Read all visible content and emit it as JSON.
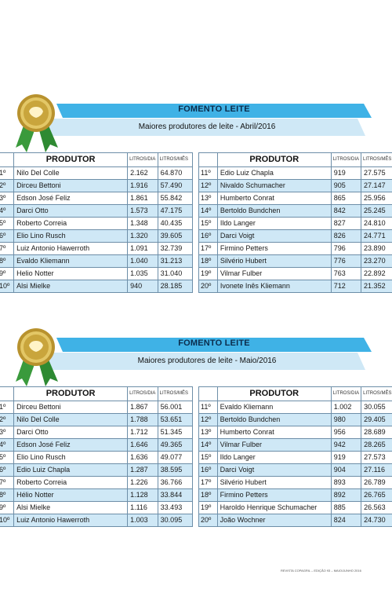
{
  "headers": {
    "produtor": "PRODUTOR",
    "litros_dia": "LITROS/DIA",
    "litros_mes": "LITROS/MÊS"
  },
  "sections": [
    {
      "title": "FOMENTO LEITE",
      "subtitle": "Maiores produtores de leite - Abril/2016",
      "left": [
        {
          "rank": "1º",
          "name": "Nilo Del Colle",
          "dia": "2.162",
          "mes": "64.870"
        },
        {
          "rank": "2º",
          "name": "Dirceu Bettoni",
          "dia": "1.916",
          "mes": "57.490"
        },
        {
          "rank": "3º",
          "name": "Edson José Feliz",
          "dia": "1.861",
          "mes": "55.842"
        },
        {
          "rank": "4º",
          "name": "Darci Otto",
          "dia": "1.573",
          "mes": "47.175"
        },
        {
          "rank": "5º",
          "name": "Roberto Correia",
          "dia": "1.348",
          "mes": "40.435"
        },
        {
          "rank": "6º",
          "name": "Elio Lino Rusch",
          "dia": "1.320",
          "mes": "39.605"
        },
        {
          "rank": "7º",
          "name": "Luiz Antonio Hawerroth",
          "dia": "1.091",
          "mes": "32.739"
        },
        {
          "rank": "8º",
          "name": "Evaldo Kliemann",
          "dia": "1.040",
          "mes": "31.213"
        },
        {
          "rank": "9º",
          "name": "Helio Notter",
          "dia": "1.035",
          "mes": "31.040"
        },
        {
          "rank": "10º",
          "name": "Alsi Mielke",
          "dia": "940",
          "mes": "28.185"
        }
      ],
      "right": [
        {
          "rank": "11º",
          "name": "Edio Luiz Chapla",
          "dia": "919",
          "mes": "27.575"
        },
        {
          "rank": "12º",
          "name": "Nivaldo Schumacher",
          "dia": "905",
          "mes": "27.147"
        },
        {
          "rank": "13º",
          "name": "Humberto Conrat",
          "dia": "865",
          "mes": "25.956"
        },
        {
          "rank": "14º",
          "name": "Bertoldo Bundchen",
          "dia": "842",
          "mes": "25.245"
        },
        {
          "rank": "15º",
          "name": "Ildo Langer",
          "dia": "827",
          "mes": "24.810"
        },
        {
          "rank": "16º",
          "name": "Darci Voigt",
          "dia": "826",
          "mes": "24.771"
        },
        {
          "rank": "17º",
          "name": "Firmino Petters",
          "dia": "796",
          "mes": "23.890"
        },
        {
          "rank": "18º",
          "name": "Silvério Hubert",
          "dia": "776",
          "mes": "23.270"
        },
        {
          "rank": "19º",
          "name": "Vilmar Fulber",
          "dia": "763",
          "mes": "22.892"
        },
        {
          "rank": "20º",
          "name": "Ivonete Inês Kliemann",
          "dia": "712",
          "mes": "21.352"
        }
      ]
    },
    {
      "title": "FOMENTO LEITE",
      "subtitle": "Maiores produtores de leite - Maio/2016",
      "left": [
        {
          "rank": "1º",
          "name": "Dirceu Bettoni",
          "dia": "1.867",
          "mes": "56.001"
        },
        {
          "rank": "2º",
          "name": "Nilo Del Colle",
          "dia": "1.788",
          "mes": "53.651"
        },
        {
          "rank": "3º",
          "name": "Darci Otto",
          "dia": "1.712",
          "mes": "51.345"
        },
        {
          "rank": "4º",
          "name": "Edson José Feliz",
          "dia": "1.646",
          "mes": "49.365"
        },
        {
          "rank": "5º",
          "name": "Elio Lino Rusch",
          "dia": "1.636",
          "mes": "49.077"
        },
        {
          "rank": "6º",
          "name": "Edio Luiz Chapla",
          "dia": "1.287",
          "mes": "38.595"
        },
        {
          "rank": "7º",
          "name": "Roberto Correia",
          "dia": "1.226",
          "mes": "36.766"
        },
        {
          "rank": "8º",
          "name": "Hélio Notter",
          "dia": "1.128",
          "mes": "33.844"
        },
        {
          "rank": "9º",
          "name": "Alsi Mielke",
          "dia": "1.116",
          "mes": "33.493"
        },
        {
          "rank": "10º",
          "name": "Luiz Antonio Hawerroth",
          "dia": "1.003",
          "mes": "30.095"
        }
      ],
      "right": [
        {
          "rank": "11º",
          "name": "Evaldo Kliemann",
          "dia": "1.002",
          "mes": "30.055"
        },
        {
          "rank": "12º",
          "name": "Bertoldo Bundchen",
          "dia": "980",
          "mes": "29.405"
        },
        {
          "rank": "13º",
          "name": "Humberto Conrat",
          "dia": "956",
          "mes": "28.689"
        },
        {
          "rank": "14º",
          "name": "Vilmar Fulber",
          "dia": "942",
          "mes": "28.265"
        },
        {
          "rank": "15º",
          "name": "Ildo Langer",
          "dia": "919",
          "mes": "27.573"
        },
        {
          "rank": "16º",
          "name": "Darci Voigt",
          "dia": "904",
          "mes": "27.116"
        },
        {
          "rank": "17º",
          "name": "Silvério Hubert",
          "dia": "893",
          "mes": "26.789"
        },
        {
          "rank": "18º",
          "name": "Firmino Petters",
          "dia": "892",
          "mes": "26.765"
        },
        {
          "rank": "19º",
          "name": "Haroldo Henrique Schumacher",
          "dia": "885",
          "mes": "26.563"
        },
        {
          "rank": "20º",
          "name": "João Wochner",
          "dia": "824",
          "mes": "24.730"
        }
      ]
    }
  ],
  "footer": "REVISTA COPAGRIL – EDIÇÃO 93 – MAIO/JUNHO 2016",
  "colors": {
    "banner_blue": "#3fb2e6",
    "banner_light": "#cfe8f6",
    "row_blue": "#cfe8f6",
    "medal_gold": "#c9a53c",
    "ribbon_green": "#3a9a3c"
  }
}
